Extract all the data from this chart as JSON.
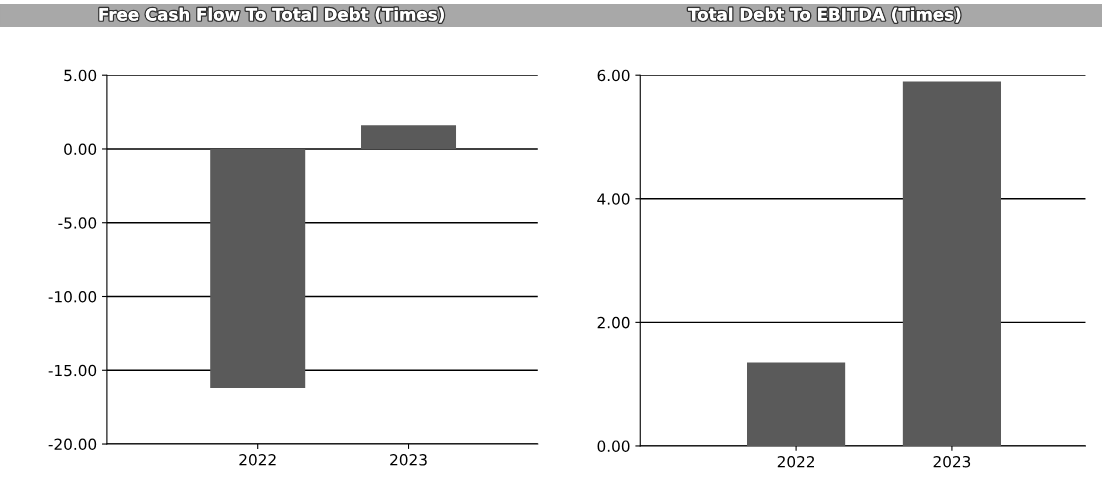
{
  "chart_data": [
    {
      "type": "bar",
      "title": "Free Cash Flow To Total Debt (Times)",
      "categories": [
        "2022",
        "2023"
      ],
      "values": [
        -16.2,
        1.6
      ],
      "color": "#5a5a5a",
      "ylim": [
        -20,
        5
      ],
      "yticks": [
        {
          "value": -20,
          "label": "-20.00"
        },
        {
          "value": -15,
          "label": "-15.00"
        },
        {
          "value": -10,
          "label": "-10.00"
        },
        {
          "value": -5,
          "label": "-5.00"
        },
        {
          "value": 0,
          "label": "0.00"
        },
        {
          "value": 5,
          "label": "5.00"
        }
      ],
      "grid": "y"
    },
    {
      "type": "bar",
      "title": "Total Debt To EBITDA (Times)",
      "categories": [
        "2022",
        "2023"
      ],
      "values": [
        1.35,
        5.9
      ],
      "color": "#5a5a5a",
      "ylim": [
        0,
        6
      ],
      "yticks": [
        {
          "value": 0,
          "label": "0.00"
        },
        {
          "value": 2,
          "label": "2.00"
        },
        {
          "value": 4,
          "label": "4.00"
        },
        {
          "value": 6,
          "label": "6.00"
        }
      ],
      "grid": "y"
    }
  ]
}
